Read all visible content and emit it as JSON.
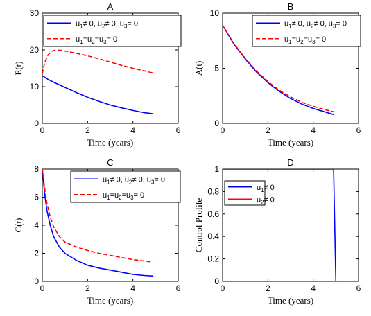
{
  "chart_data": [
    {
      "type": "line",
      "title": "A",
      "xlabel": "Time (years)",
      "ylabel": "E(t)",
      "xlim": [
        0,
        6
      ],
      "ylim": [
        0,
        30
      ],
      "xticks": [
        "0",
        "2",
        "4",
        "6"
      ],
      "yticks": [
        "0",
        "10",
        "20",
        "30"
      ],
      "legend_position": "top-right",
      "series": [
        {
          "name": [
            "u",
            "1",
            "≠ 0, u",
            "2",
            "≠ 0, u",
            "3",
            "= 0"
          ],
          "color": "#0000ff",
          "dash": "solid",
          "x": [
            0,
            0.25,
            0.5,
            1,
            1.5,
            2,
            2.5,
            3,
            3.5,
            4,
            4.5,
            4.9
          ],
          "y": [
            13,
            12,
            11.2,
            9.8,
            8.4,
            7.1,
            6,
            5,
            4.2,
            3.5,
            2.9,
            2.6
          ]
        },
        {
          "name": [
            "u",
            "1",
            "=u",
            "2",
            "=u",
            "3",
            "= 0"
          ],
          "color": "#ff0000",
          "dash": "dashed",
          "x": [
            0,
            0.1,
            0.25,
            0.4,
            0.6,
            0.8,
            1,
            1.5,
            2,
            2.5,
            3,
            3.5,
            4,
            4.5,
            4.9
          ],
          "y": [
            13.5,
            16.5,
            18.6,
            19.6,
            20,
            19.9,
            19.7,
            19.1,
            18.4,
            17.6,
            16.7,
            15.8,
            15,
            14.3,
            13.7
          ]
        }
      ]
    },
    {
      "type": "line",
      "title": "B",
      "xlabel": "Time (years)",
      "ylabel": "A(t)",
      "xlim": [
        0,
        6
      ],
      "ylim": [
        0,
        10
      ],
      "xticks": [
        "0",
        "2",
        "4",
        "6"
      ],
      "yticks": [
        "0",
        "5",
        "10"
      ],
      "legend_position": "top-right",
      "series": [
        {
          "name": [
            "u",
            "1",
            "≠ 0, u",
            "2",
            "≠ 0, u",
            "3",
            "= 0"
          ],
          "color": "#0000ff",
          "dash": "solid",
          "x": [
            0,
            0.5,
            1,
            1.5,
            2,
            2.5,
            3,
            3.5,
            4,
            4.5,
            4.9
          ],
          "y": [
            8.9,
            7.2,
            5.85,
            4.65,
            3.7,
            2.9,
            2.25,
            1.75,
            1.35,
            1.05,
            0.8
          ]
        },
        {
          "name": [
            "u",
            "1",
            "=u",
            "2",
            "=u",
            "3",
            "= 0"
          ],
          "color": "#ff0000",
          "dash": "dashed",
          "x": [
            0,
            0.5,
            1,
            1.5,
            2,
            2.5,
            3,
            3.5,
            4,
            4.5,
            4.9
          ],
          "y": [
            8.9,
            7.25,
            5.9,
            4.75,
            3.8,
            3.0,
            2.4,
            1.9,
            1.55,
            1.25,
            1.05
          ]
        }
      ]
    },
    {
      "type": "line",
      "title": "C",
      "xlabel": "Time (years)",
      "ylabel": "C(t)",
      "xlim": [
        0,
        6
      ],
      "ylim": [
        0,
        8
      ],
      "xticks": [
        "0",
        "2",
        "4",
        "6"
      ],
      "yticks": [
        "0",
        "2",
        "4",
        "6",
        "8"
      ],
      "legend_position": "top-right",
      "series": [
        {
          "name": [
            "u",
            "1",
            "≠ 0, u",
            "2",
            "≠ 0, u",
            "3",
            "= 0"
          ],
          "color": "#0000ff",
          "dash": "solid",
          "x": [
            0,
            0.1,
            0.2,
            0.35,
            0.5,
            0.75,
            1,
            1.5,
            2,
            2.5,
            3,
            3.5,
            4,
            4.5,
            4.9
          ],
          "y": [
            8,
            6.3,
            5.1,
            4,
            3.2,
            2.45,
            2.0,
            1.5,
            1.15,
            0.95,
            0.8,
            0.65,
            0.5,
            0.42,
            0.38
          ]
        },
        {
          "name": [
            "u",
            "1",
            "=u",
            "2",
            "=u",
            "3",
            "= 0"
          ],
          "color": "#ff0000",
          "dash": "dashed",
          "x": [
            0,
            0.1,
            0.2,
            0.35,
            0.5,
            0.75,
            1,
            1.5,
            2,
            2.5,
            3,
            3.5,
            4,
            4.5,
            4.9
          ],
          "y": [
            8,
            6.7,
            5.6,
            4.6,
            3.9,
            3.2,
            2.8,
            2.45,
            2.2,
            2.0,
            1.85,
            1.7,
            1.55,
            1.45,
            1.37
          ]
        }
      ]
    },
    {
      "type": "line",
      "title": "D",
      "xlabel": "Time (years)",
      "ylabel": "Control Profile",
      "xlim": [
        0,
        6
      ],
      "ylim": [
        0,
        1
      ],
      "xticks": [
        "0",
        "2",
        "4",
        "6"
      ],
      "yticks": [
        "0",
        "0.2",
        "0.4",
        "0.6",
        "0.8",
        "1"
      ],
      "legend_position": "top-left",
      "series": [
        {
          "name": [
            "u",
            "1",
            "≠ 0"
          ],
          "color": "#0000ff",
          "dash": "solid",
          "x": [
            0,
            4.9,
            5.0
          ],
          "y": [
            1,
            1,
            0
          ]
        },
        {
          "name": [
            "u",
            "2",
            "≠ 0"
          ],
          "color": "#ff0000",
          "dash": "solid",
          "x": [
            0,
            5.0
          ],
          "y": [
            0,
            0
          ]
        }
      ]
    }
  ]
}
